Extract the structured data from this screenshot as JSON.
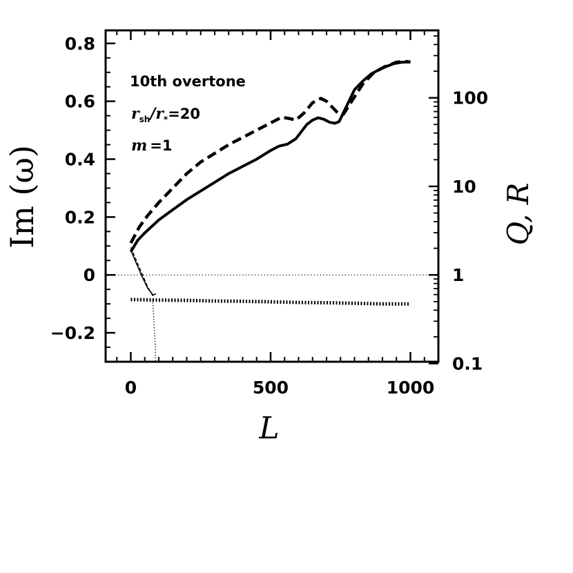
{
  "chart_data": {
    "type": "line",
    "xlabel": "L",
    "ylabel": "Im (ω)",
    "y2label": "Q, R",
    "xlim": [
      -90,
      1100
    ],
    "ylim": [
      -0.3,
      0.845
    ],
    "y2scale": "log",
    "xticks": [
      0,
      500,
      1000
    ],
    "xtick_labels": [
      "0",
      "500",
      "1000"
    ],
    "yticks": [
      0.8,
      0.6,
      0.4,
      0.2,
      0,
      -0.2
    ],
    "ytick_labels": [
      "0.8",
      "0.6",
      "0.4",
      "0.2",
      "0",
      "−0.2"
    ],
    "y2ticks": [
      100,
      10,
      1,
      0.1
    ],
    "y2tick_labels": [
      "100",
      "10",
      "1",
      "0.1"
    ],
    "grid": false,
    "reference_line": {
      "y": 0,
      "style": "dotted"
    },
    "annotations": {
      "line1": "10th overtone",
      "line2_r": "r",
      "line2_sub": "sh",
      "line2_slash": "/",
      "line2_r2": "r",
      "line2_star": "*",
      "line2_eq": "=20",
      "line3_m": "m",
      "line3_eq": "=1"
    },
    "series": [
      {
        "style": "solid-thick",
        "x": [
          0,
          25,
          50,
          100,
          150,
          200,
          250,
          300,
          350,
          400,
          450,
          500,
          530,
          560,
          590,
          610,
          630,
          650,
          670,
          690,
          710,
          730,
          745,
          760,
          780,
          800,
          830,
          860,
          900,
          940,
          970,
          1000
        ],
        "y": [
          0.08,
          0.12,
          0.145,
          0.19,
          0.225,
          0.26,
          0.29,
          0.32,
          0.35,
          0.375,
          0.4,
          0.43,
          0.445,
          0.452,
          0.47,
          0.495,
          0.52,
          0.535,
          0.543,
          0.538,
          0.528,
          0.524,
          0.53,
          0.56,
          0.6,
          0.64,
          0.67,
          0.695,
          0.715,
          0.73,
          0.735,
          0.736
        ]
      },
      {
        "style": "dashed-thick",
        "x": [
          0,
          30,
          60,
          100,
          150,
          200,
          250,
          300,
          350,
          400,
          450,
          500,
          540,
          570,
          590,
          620,
          650,
          680,
          700,
          720,
          740,
          760,
          790,
          830,
          870,
          910,
          950,
          980,
          1000
        ],
        "y": [
          0.11,
          0.165,
          0.205,
          0.25,
          0.3,
          0.35,
          0.39,
          0.42,
          0.45,
          0.475,
          0.5,
          0.525,
          0.545,
          0.54,
          0.535,
          0.56,
          0.595,
          0.61,
          0.6,
          0.58,
          0.56,
          0.555,
          0.6,
          0.66,
          0.7,
          0.72,
          0.735,
          0.738,
          0.736
        ]
      },
      {
        "style": "dotted-thick",
        "x": [
          0,
          100,
          200,
          300,
          400,
          500,
          600,
          700,
          800,
          900,
          1000
        ],
        "y": [
          -0.085,
          -0.087,
          -0.088,
          -0.09,
          -0.091,
          -0.093,
          -0.095,
          -0.096,
          -0.098,
          -0.1,
          -0.1
        ]
      },
      {
        "style": "solid-thin",
        "x": [
          0,
          20,
          40,
          60,
          80,
          90
        ],
        "y": [
          0.085,
          0.04,
          -0.005,
          -0.045,
          -0.07,
          -0.065
        ]
      },
      {
        "style": "dashed-thin",
        "x": [
          0,
          20,
          40,
          60,
          80
        ],
        "y": [
          0.095,
          0.05,
          0.005,
          -0.04,
          -0.075
        ]
      },
      {
        "style": "dotted-thin",
        "x": [
          78,
          82,
          85,
          87,
          88,
          89
        ],
        "y": [
          -0.085,
          -0.15,
          -0.2,
          -0.24,
          -0.27,
          -0.3
        ]
      }
    ]
  }
}
